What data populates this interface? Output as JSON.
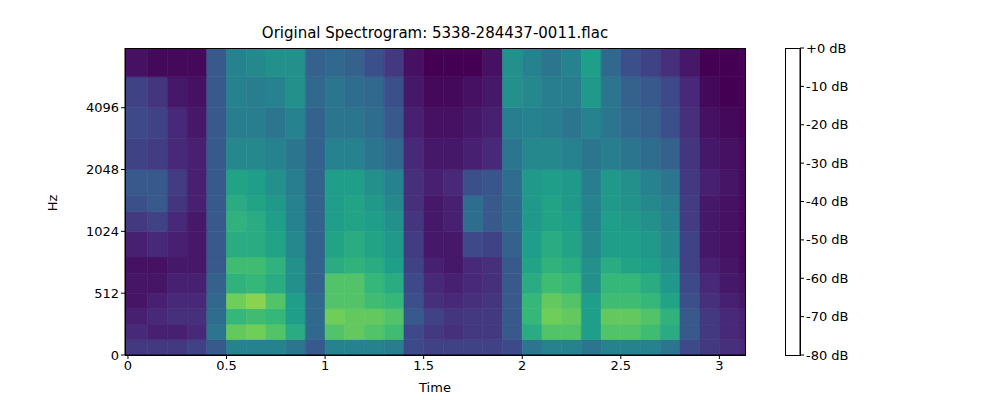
{
  "chart_data": {
    "type": "heatmap",
    "title": "Original Spectrogram: 5338-284437-0011.flac",
    "x_label": "Time",
    "y_label": "Hz",
    "xlim": [
      -0.015,
      3.13
    ],
    "xticks": [
      0,
      0.5,
      1,
      1.5,
      2,
      2.5,
      3
    ],
    "ylim": [
      0,
      8000
    ],
    "yticks": [
      0,
      512,
      1024,
      2048,
      4096
    ],
    "log": "y",
    "color": "viridis",
    "x_edges": [
      -0.015,
      0.1,
      0.2,
      0.3,
      0.4,
      0.5,
      0.6,
      0.7,
      0.8,
      0.9,
      1.0,
      1.1,
      1.2,
      1.3,
      1.4,
      1.5,
      1.6,
      1.7,
      1.8,
      1.9,
      2.0,
      2.1,
      2.2,
      2.3,
      2.4,
      2.5,
      2.6,
      2.7,
      2.8,
      2.9,
      3.0,
      3.1,
      3.13
    ],
    "y_edges": [
      0,
      128,
      256,
      384,
      512,
      640,
      768,
      1024,
      1280,
      1536,
      2048,
      2896,
      4096,
      5793,
      8000
    ],
    "cells": [
      [
        -65,
        -65,
        -65,
        -62,
        -55,
        -40,
        -40,
        -40,
        -45,
        -55,
        -40,
        -40,
        -40,
        -42,
        -60,
        -62,
        -62,
        -62,
        -62,
        -60,
        -45,
        -40,
        -40,
        -45,
        -40,
        -40,
        -40,
        -45,
        -60,
        -65,
        -68,
        -70
      ],
      [
        -70,
        -72,
        -72,
        -70,
        -45,
        -12,
        -10,
        -15,
        -25,
        -50,
        -15,
        -12,
        -15,
        -18,
        -60,
        -65,
        -68,
        -65,
        -65,
        -55,
        -25,
        -15,
        -15,
        -30,
        -15,
        -15,
        -18,
        -25,
        -55,
        -65,
        -70,
        -72
      ],
      [
        -72,
        -70,
        -68,
        -68,
        -48,
        -20,
        -18,
        -20,
        -30,
        -50,
        -10,
        -12,
        -12,
        -15,
        -55,
        -62,
        -66,
        -65,
        -65,
        -55,
        -20,
        -10,
        -12,
        -30,
        -12,
        -12,
        -15,
        -22,
        -55,
        -65,
        -70,
        -72
      ],
      [
        -75,
        -72,
        -70,
        -70,
        -50,
        -10,
        -8,
        -15,
        -30,
        -50,
        -15,
        -15,
        -18,
        -20,
        -58,
        -68,
        -70,
        -68,
        -66,
        -55,
        -20,
        -12,
        -15,
        -30,
        -18,
        -18,
        -20,
        -28,
        -58,
        -68,
        -72,
        -75
      ],
      [
        -75,
        -75,
        -72,
        -72,
        -52,
        -22,
        -20,
        -25,
        -35,
        -52,
        -15,
        -15,
        -20,
        -25,
        -60,
        -70,
        -72,
        -70,
        -68,
        -55,
        -25,
        -18,
        -20,
        -35,
        -20,
        -20,
        -25,
        -32,
        -60,
        -70,
        -74,
        -76
      ],
      [
        -76,
        -76,
        -74,
        -74,
        -55,
        -18,
        -18,
        -22,
        -35,
        -52,
        -25,
        -22,
        -25,
        -30,
        -62,
        -72,
        -74,
        -70,
        -68,
        -55,
        -28,
        -22,
        -25,
        -35,
        -25,
        -28,
        -30,
        -35,
        -62,
        -72,
        -75,
        -78
      ],
      [
        -72,
        -70,
        -72,
        -74,
        -55,
        -25,
        -25,
        -28,
        -38,
        -52,
        -28,
        -25,
        -28,
        -32,
        -64,
        -74,
        -74,
        -60,
        -62,
        -52,
        -30,
        -25,
        -28,
        -38,
        -30,
        -30,
        -32,
        -38,
        -62,
        -74,
        -76,
        -78
      ],
      [
        -65,
        -62,
        -70,
        -74,
        -55,
        -22,
        -25,
        -30,
        -40,
        -52,
        -30,
        -28,
        -30,
        -35,
        -66,
        -74,
        -72,
        -48,
        -55,
        -50,
        -32,
        -28,
        -30,
        -40,
        -30,
        -32,
        -35,
        -40,
        -64,
        -74,
        -76,
        -78
      ],
      [
        -58,
        -55,
        -66,
        -72,
        -55,
        -25,
        -28,
        -32,
        -40,
        -52,
        -30,
        -28,
        -32,
        -38,
        -68,
        -74,
        -72,
        -48,
        -55,
        -50,
        -32,
        -28,
        -32,
        -40,
        -32,
        -34,
        -38,
        -42,
        -64,
        -74,
        -76,
        -78
      ],
      [
        -55,
        -55,
        -64,
        -72,
        -55,
        -28,
        -30,
        -35,
        -42,
        -52,
        -30,
        -30,
        -35,
        -40,
        -68,
        -72,
        -70,
        -58,
        -56,
        -48,
        -32,
        -30,
        -32,
        -42,
        -32,
        -35,
        -40,
        -45,
        -65,
        -72,
        -75,
        -78
      ],
      [
        -62,
        -64,
        -70,
        -72,
        -55,
        -38,
        -38,
        -40,
        -45,
        -52,
        -40,
        -40,
        -45,
        -50,
        -70,
        -74,
        -74,
        -72,
        -70,
        -45,
        -38,
        -38,
        -40,
        -45,
        -42,
        -45,
        -48,
        -52,
        -66,
        -74,
        -76,
        -78
      ],
      [
        -60,
        -62,
        -70,
        -74,
        -55,
        -42,
        -42,
        -45,
        -40,
        -52,
        -45,
        -45,
        -48,
        -55,
        -72,
        -76,
        -76,
        -74,
        -72,
        -42,
        -40,
        -42,
        -45,
        -40,
        -45,
        -50,
        -52,
        -58,
        -68,
        -76,
        -78,
        -80
      ],
      [
        -62,
        -66,
        -74,
        -76,
        -55,
        -40,
        -42,
        -40,
        -35,
        -50,
        -45,
        -48,
        -50,
        -58,
        -74,
        -78,
        -78,
        -76,
        -74,
        -35,
        -38,
        -42,
        -42,
        -32,
        -45,
        -52,
        -55,
        -60,
        -70,
        -78,
        -80,
        -80
      ],
      [
        -76,
        -78,
        -78,
        -78,
        -55,
        -40,
        -38,
        -35,
        -35,
        -52,
        -50,
        -52,
        -58,
        -65,
        -76,
        -80,
        -80,
        -80,
        -76,
        -35,
        -40,
        -45,
        -40,
        -30,
        -50,
        -58,
        -62,
        -68,
        -74,
        -80,
        -80,
        -80
      ]
    ],
    "colorbar": {
      "range": [
        -80,
        0
      ],
      "ticks": [
        {
          "value": 0,
          "label": "+0 dB"
        },
        {
          "value": -10,
          "label": "-10 dB"
        },
        {
          "value": -20,
          "label": "-20 dB"
        },
        {
          "value": -30,
          "label": "-30 dB"
        },
        {
          "value": -40,
          "label": "-40 dB"
        },
        {
          "value": -50,
          "label": "-50 dB"
        },
        {
          "value": -60,
          "label": "-60 dB"
        },
        {
          "value": -70,
          "label": "-70 dB"
        },
        {
          "value": -80,
          "label": "-80 dB"
        }
      ]
    }
  }
}
